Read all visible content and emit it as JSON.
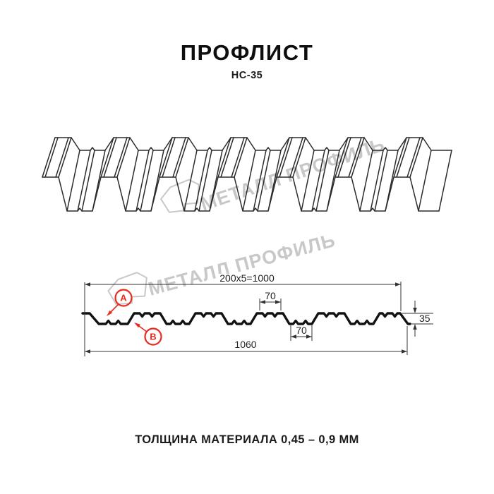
{
  "title": {
    "main": "ПРОФЛИСТ",
    "model": "НС-35"
  },
  "watermark": {
    "text": "МЕТАЛЛ ПРОФИЛЬ"
  },
  "dimensions": {
    "top_total": "200x5=1000",
    "crest_width": "70",
    "pan_width": "70",
    "height": "35",
    "overall_width": "1060"
  },
  "labels": {
    "side_a": "A",
    "side_b": "B"
  },
  "footer": {
    "thickness": "ТОЛЩИНА МАТЕРИАЛА 0,45 – 0,9 ММ"
  },
  "colors": {
    "line": "#2b2b2b",
    "profile": "#121212",
    "dimension": "#333333",
    "annotation": "#e82b1e",
    "watermark": "#c8c8c8",
    "background": "#ffffff"
  }
}
